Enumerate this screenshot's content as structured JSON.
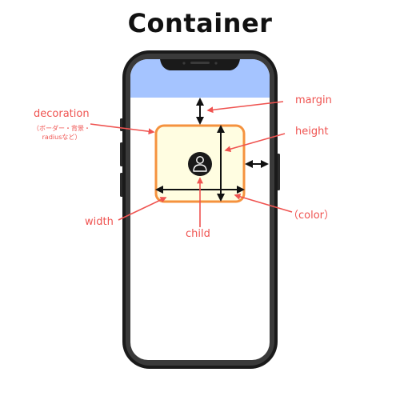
{
  "title": "Container",
  "labels": {
    "decoration": "decoration",
    "decoration_note_line1": "（ボーダー・背景・",
    "decoration_note_line2": "radiusなど）",
    "margin": "margin",
    "height": "height",
    "color": "（color）",
    "width": "width",
    "child": "child"
  },
  "icons": {
    "child_icon": "person-icon"
  },
  "colors": {
    "label": "#ef5350",
    "container_border": "#f5923e",
    "container_fill": "#fffde1",
    "app_bar": "#a5c4ff",
    "phone_frame": "#1a1a1a",
    "measure_arrow": "#111111",
    "pointer_arrow": "#ef5350"
  }
}
